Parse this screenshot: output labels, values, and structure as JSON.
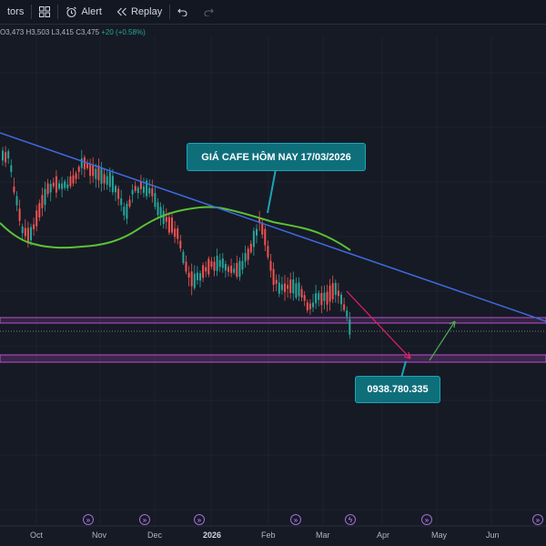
{
  "toolbar": {
    "indicators_label": "tors",
    "alert_label": "Alert",
    "replay_label": "Replay"
  },
  "ohlc": {
    "open": "O3,473",
    "high": "H3,503",
    "low": "L3,415",
    "close": "C3,475",
    "change": "+20 (+0.58%)"
  },
  "chart": {
    "title_callout": "GIÁ CAFE HÔM NAY 17/03/2026",
    "phone_callout": "0938.780.335",
    "x_labels": [
      "Oct",
      "Nov",
      "Dec",
      "2026",
      "Feb",
      "Mar",
      "Apr",
      "May",
      "Jun"
    ],
    "colors": {
      "up": "#26a69a",
      "down": "#ef5350",
      "trendline": "#3d6bde",
      "moving_average": "#5bc236",
      "zone": "#a64dbf",
      "callout_bg": "#0e6f7b",
      "arrow_down": "#e91e63",
      "arrow_up": "#4caf50"
    }
  },
  "event_icons": [
    "fast-forward-icon",
    "fast-forward-icon",
    "fast-forward-icon",
    "fast-forward-icon",
    "lightning-icon",
    "fast-forward-icon",
    "fast-forward-icon"
  ]
}
